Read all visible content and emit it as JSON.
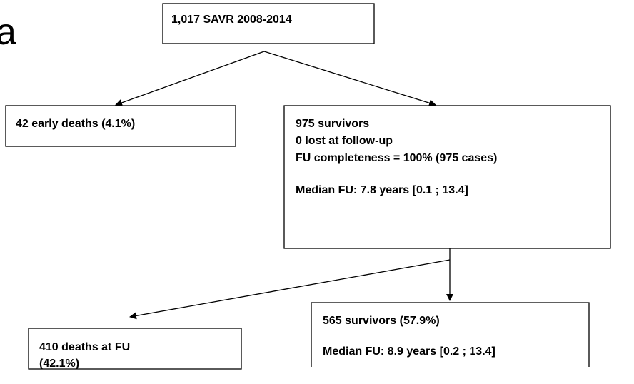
{
  "fragment": "a",
  "nodes": [
    {
      "lines": [
        "1,017 SAVR 2008-2014"
      ]
    },
    {
      "lines": [
        "42 early deaths (4.1%)"
      ]
    },
    {
      "lines": [
        "975 survivors",
        "0 lost at follow-up",
        "FU completeness = 100% (975 cases)",
        "Median FU: 7.8 years [0.1 ; 13.4]"
      ]
    },
    {
      "lines": [
        "410 deaths at FU",
        "(42.1%)"
      ]
    },
    {
      "lines": [
        "565 survivors (57.9%)",
        "Median FU: 8.9 years [0.2 ; 13.4]"
      ]
    }
  ]
}
